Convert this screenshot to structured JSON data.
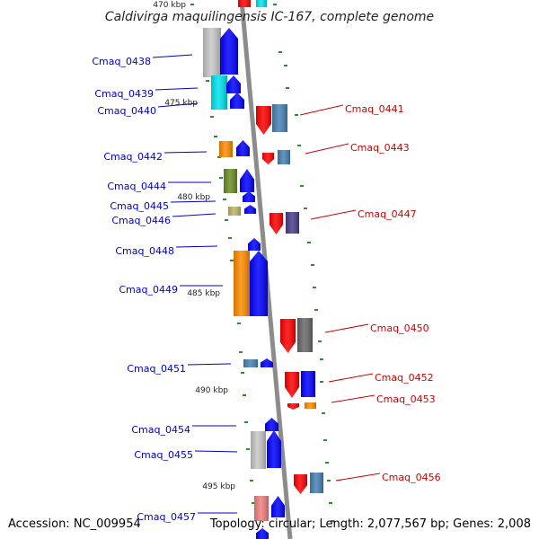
{
  "title": "Caldivirga maquilingensis IC-167, complete genome",
  "footer": {
    "accession": "Accession: NC_009954",
    "stats": "Topology: circular; Length: 2,077,567 bp; Genes: 2,008"
  },
  "colors": {
    "forward_label": "#0000cc",
    "reverse_label": "#cc0000",
    "backbone": "#8c8c8c",
    "tick": "#2e8b2e"
  },
  "ruler": [
    "470 kbp",
    "475 kbp",
    "480 kbp",
    "485 kbp",
    "490 kbp",
    "495 kbp"
  ],
  "forward_genes": [
    "Cmaq_0438",
    "Cmaq_0439",
    "Cmaq_0440",
    "Cmaq_0442",
    "Cmaq_0444",
    "Cmaq_0445",
    "Cmaq_0446",
    "Cmaq_0448",
    "Cmaq_0449",
    "Cmaq_0451",
    "Cmaq_0454",
    "Cmaq_0455",
    "Cmaq_0457"
  ],
  "reverse_genes": [
    "Cmaq_0441",
    "Cmaq_0443",
    "Cmaq_0447",
    "Cmaq_0450",
    "Cmaq_0452",
    "Cmaq_0453",
    "Cmaq_0456"
  ],
  "cog_colors": [
    "#c8c8c8",
    "#00e5ee",
    "#ff8c00",
    "#6b8e23",
    "#bdb76b",
    "#4682b4",
    "#483d8b",
    "#696969",
    "#f08080",
    "#ff0000",
    "#0000ff"
  ]
}
